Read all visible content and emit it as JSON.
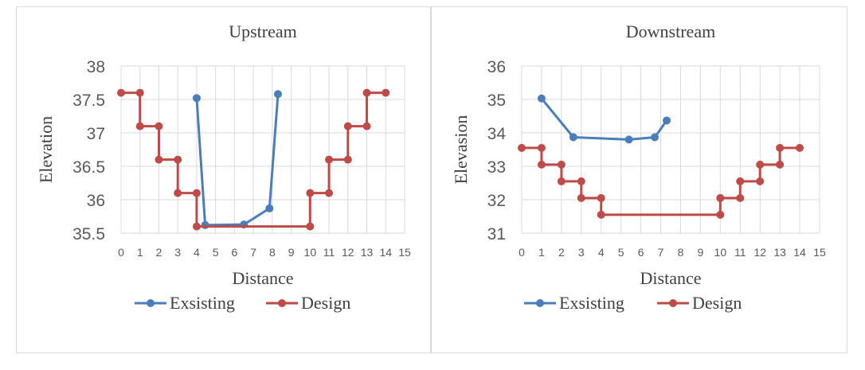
{
  "colors": {
    "existing": "#4a7ebb",
    "design": "#be4b48"
  },
  "chart_data": [
    {
      "type": "line",
      "title": "Upstream",
      "xlabel": "Distance",
      "ylabel": "Elevation",
      "xlim": [
        0,
        15
      ],
      "ylim": [
        35.5,
        38
      ],
      "x_ticks": [
        "0",
        "1",
        "2",
        "3",
        "4",
        "5",
        "6",
        "7",
        "8",
        "9",
        "10",
        "11",
        "12",
        "13",
        "14",
        "15"
      ],
      "y_ticks": [
        "35.5",
        "36",
        "36.5",
        "37",
        "37.5",
        "38"
      ],
      "y_tick_values": [
        35.5,
        36,
        36.5,
        37,
        37.5,
        38
      ],
      "grid": true,
      "legend": "bottom",
      "series": [
        {
          "name": "Exsisting",
          "color": "#4a7ebb",
          "x": [
            4,
            4.45,
            6.5,
            7.85,
            8.3
          ],
          "y": [
            37.52,
            35.62,
            35.63,
            35.87,
            37.58
          ]
        },
        {
          "name": "Design",
          "color": "#be4b48",
          "x": [
            0,
            1,
            1,
            2,
            2,
            3,
            3,
            4,
            4,
            10,
            10,
            11,
            11,
            12,
            12,
            13,
            13,
            14
          ],
          "y": [
            37.6,
            37.6,
            37.1,
            37.1,
            36.6,
            36.6,
            36.1,
            36.1,
            35.6,
            35.6,
            36.1,
            36.1,
            36.6,
            36.6,
            37.1,
            37.1,
            37.6,
            37.6
          ]
        }
      ]
    },
    {
      "type": "line",
      "title": "Downstream",
      "xlabel": "Distance",
      "ylabel": "Elevasion",
      "xlim": [
        0,
        15
      ],
      "ylim": [
        31,
        36
      ],
      "x_ticks": [
        "0",
        "1",
        "2",
        "3",
        "4",
        "5",
        "6",
        "7",
        "8",
        "9",
        "10",
        "11",
        "12",
        "13",
        "14",
        "15"
      ],
      "y_ticks": [
        "31",
        "32",
        "33",
        "34",
        "35",
        "36"
      ],
      "y_tick_values": [
        31,
        32,
        33,
        34,
        35,
        36
      ],
      "grid": true,
      "legend": "bottom",
      "series": [
        {
          "name": "Exsisting",
          "color": "#4a7ebb",
          "x": [
            1,
            2.6,
            5.4,
            6.7,
            7.3
          ],
          "y": [
            35.03,
            33.87,
            33.8,
            33.87,
            34.37
          ]
        },
        {
          "name": "Design",
          "color": "#be4b48",
          "x": [
            0,
            1,
            1,
            2,
            2,
            3,
            3,
            4,
            4,
            10,
            10,
            11,
            11,
            12,
            12,
            13,
            13,
            14
          ],
          "y": [
            33.55,
            33.55,
            33.05,
            33.05,
            32.55,
            32.55,
            32.05,
            32.05,
            31.55,
            31.55,
            32.05,
            32.05,
            32.55,
            32.55,
            33.05,
            33.05,
            33.55,
            33.55
          ]
        }
      ]
    }
  ]
}
